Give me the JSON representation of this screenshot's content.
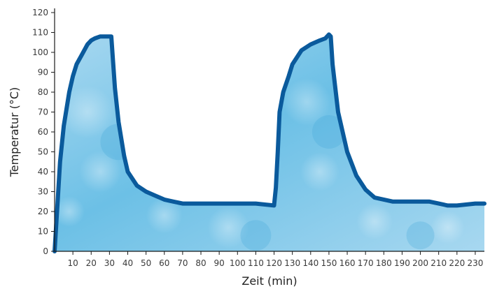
{
  "chart_data": {
    "type": "area",
    "title": "",
    "xlabel": "Zeit (min)",
    "ylabel": "Temperatur (°C)",
    "xlim": [
      0,
      235
    ],
    "ylim": [
      0,
      120
    ],
    "x_ticks": [
      10,
      20,
      30,
      40,
      50,
      60,
      70,
      80,
      90,
      100,
      110,
      120,
      130,
      140,
      150,
      160,
      170,
      180,
      190,
      200,
      210,
      220,
      230
    ],
    "y_ticks": [
      0,
      10,
      20,
      30,
      40,
      50,
      60,
      70,
      80,
      90,
      100,
      110,
      120
    ],
    "grid": false,
    "legend": "none",
    "colors": {
      "fill_light": "#a8d8f0",
      "fill_mid": "#6cc0e6",
      "fill_dark": "#3aa3d8",
      "line": "#0a5a9c",
      "axis": "#1a1a1a"
    },
    "series": [
      {
        "x": [
          0,
          1,
          2,
          3,
          5,
          8,
          10,
          12,
          15,
          18,
          20,
          22,
          25,
          28,
          30,
          31,
          32,
          33,
          35,
          38,
          40,
          45,
          50,
          55,
          60,
          65,
          70,
          80,
          90,
          100,
          110,
          120,
          121,
          122,
          123,
          125,
          128,
          130,
          135,
          140,
          145,
          148,
          150,
          151,
          152,
          155,
          160,
          165,
          170,
          175,
          180,
          185,
          190,
          200,
          205,
          210,
          215,
          220,
          230,
          235
        ],
        "y": [
          0,
          15,
          30,
          45,
          63,
          80,
          88,
          94,
          99,
          104,
          106,
          107,
          108,
          108,
          108,
          108,
          95,
          82,
          65,
          48,
          40,
          33,
          30,
          28,
          26,
          25,
          24,
          24,
          24,
          24,
          24,
          23,
          32,
          50,
          70,
          80,
          88,
          94,
          101,
          104,
          106,
          107,
          109,
          108,
          94,
          70,
          50,
          38,
          31,
          27,
          26,
          25,
          25,
          25,
          25,
          24,
          23,
          23,
          24,
          24
        ]
      }
    ]
  }
}
